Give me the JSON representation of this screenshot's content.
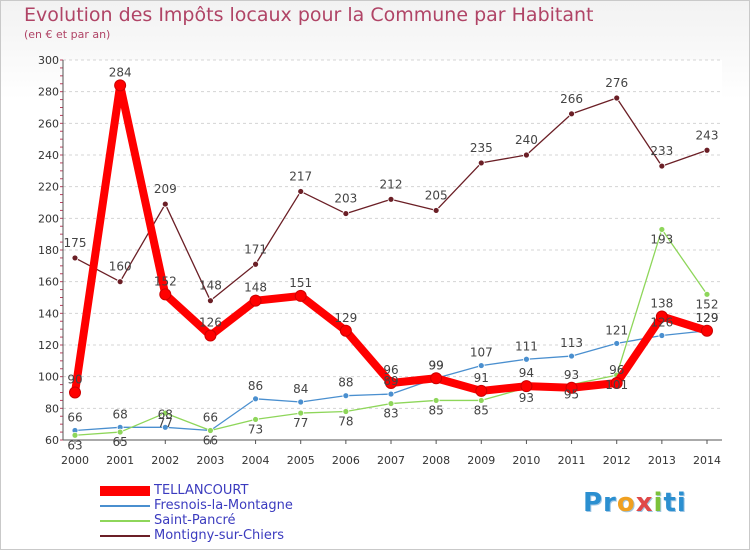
{
  "chart_data": {
    "type": "line",
    "title": "Evolution des Impôts locaux pour la Commune par Habitant",
    "subtitle": "(en € et par an)",
    "x": [
      "2000",
      "2001",
      "2002",
      "2003",
      "2004",
      "2005",
      "2006",
      "2007",
      "2008",
      "2009",
      "2010",
      "2011",
      "2012",
      "2013",
      "2014"
    ],
    "ylim": [
      60,
      300
    ],
    "yticks": [
      60,
      80,
      100,
      120,
      140,
      160,
      180,
      200,
      220,
      240,
      260,
      280,
      300
    ],
    "grid": "horizontal-dashed",
    "legend_position": "bottom-left",
    "series": [
      {
        "name": "TELLANCOURT",
        "color": "#ff0000",
        "values": [
          90,
          284,
          152,
          126,
          148,
          151,
          129,
          96,
          99,
          91,
          94,
          93,
          96,
          138,
          129
        ]
      },
      {
        "name": "Fresnois-la-Montagne",
        "color": "#4a8fcf",
        "values": [
          66,
          68,
          68,
          66,
          86,
          84,
          88,
          89,
          99,
          107,
          111,
          113,
          121,
          126,
          129
        ]
      },
      {
        "name": "Saint-Pancré",
        "color": "#8ed65a",
        "values": [
          63,
          65,
          77,
          66,
          73,
          77,
          78,
          83,
          85,
          85,
          93,
          95,
          101,
          193,
          152
        ]
      },
      {
        "name": "Montigny-sur-Chiers",
        "color": "#6b1f26",
        "values": [
          175,
          160,
          209,
          148,
          171,
          217,
          203,
          212,
          205,
          235,
          240,
          266,
          276,
          233,
          243
        ]
      }
    ]
  },
  "branding": {
    "logo_parts": [
      "Pr",
      "o",
      "x",
      "i",
      "ti"
    ]
  }
}
